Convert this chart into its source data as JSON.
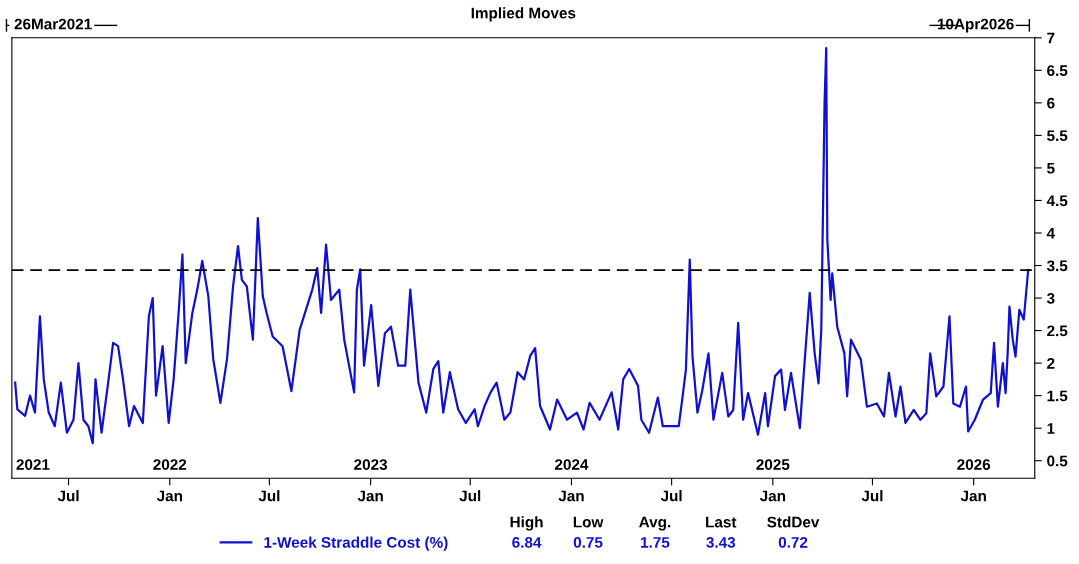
{
  "chart_data": {
    "type": "line",
    "title": "Implied Moves",
    "x": [
      "2021-03-26",
      "2021-03-30",
      "2021-04-13",
      "2021-04-22",
      "2021-05-01",
      "2021-05-10",
      "2021-05-17",
      "2021-05-26",
      "2021-06-06",
      "2021-06-17",
      "2021-06-28",
      "2021-07-10",
      "2021-07-19",
      "2021-07-28",
      "2021-08-06",
      "2021-08-14",
      "2021-08-19",
      "2021-08-30",
      "2021-09-11",
      "2021-09-20",
      "2021-09-29",
      "2021-10-08",
      "2021-10-19",
      "2021-10-28",
      "2021-11-13",
      "2021-11-24",
      "2021-12-01",
      "2021-12-07",
      "2021-12-19",
      "2021-12-30",
      "2022-01-08",
      "2022-01-17",
      "2022-01-24",
      "2022-01-30",
      "2022-02-11",
      "2022-02-20",
      "2022-03-01",
      "2022-03-12",
      "2022-03-21",
      "2022-04-03",
      "2022-04-15",
      "2022-04-26",
      "2022-05-05",
      "2022-05-12",
      "2022-05-21",
      "2022-06-01",
      "2022-06-10",
      "2022-06-19",
      "2022-06-26",
      "2022-07-07",
      "2022-07-25",
      "2022-08-10",
      "2022-08-25",
      "2022-09-17",
      "2022-09-26",
      "2022-10-03",
      "2022-10-12",
      "2022-10-21",
      "2022-11-05",
      "2022-11-14",
      "2022-12-02",
      "2022-12-07",
      "2022-12-13",
      "2022-12-20",
      "2023-01-02",
      "2023-01-15",
      "2023-01-27",
      "2023-02-07",
      "2023-02-20",
      "2023-03-05",
      "2023-03-14",
      "2023-03-29",
      "2023-04-12",
      "2023-04-25",
      "2023-05-04",
      "2023-05-13",
      "2023-05-25",
      "2023-06-09",
      "2023-06-23",
      "2023-07-09",
      "2023-07-15",
      "2023-07-27",
      "2023-08-07",
      "2023-08-18",
      "2023-09-01",
      "2023-09-12",
      "2023-09-25",
      "2023-10-07",
      "2023-10-18",
      "2023-10-27",
      "2023-11-05",
      "2023-11-23",
      "2023-12-06",
      "2023-12-24",
      "2024-01-11",
      "2024-01-23",
      "2024-02-03",
      "2024-02-21",
      "2024-03-14",
      "2024-03-26",
      "2024-04-04",
      "2024-04-15",
      "2024-05-01",
      "2024-05-07",
      "2024-05-21",
      "2024-06-06",
      "2024-06-15",
      "2024-07-03",
      "2024-07-14",
      "2024-07-21",
      "2024-07-27",
      "2024-08-03",
      "2024-08-08",
      "2024-08-17",
      "2024-08-26",
      "2024-09-06",
      "2024-09-15",
      "2024-10-01",
      "2024-10-12",
      "2024-10-21",
      "2024-10-30",
      "2024-11-08",
      "2024-11-17",
      "2024-12-05",
      "2024-12-18",
      "2024-12-23",
      "2025-01-05",
      "2025-01-16",
      "2025-01-23",
      "2025-02-03",
      "2025-02-19",
      "2025-02-28",
      "2025-03-09",
      "2025-03-18",
      "2025-03-25",
      "2025-03-30",
      "2025-04-05",
      "2025-04-08",
      "2025-04-10",
      "2025-04-16",
      "2025-04-19",
      "2025-04-28",
      "2025-05-11",
      "2025-05-16",
      "2025-05-23",
      "2025-06-10",
      "2025-06-21",
      "2025-07-09",
      "2025-07-22",
      "2025-07-31",
      "2025-08-12",
      "2025-08-21",
      "2025-08-30",
      "2025-09-14",
      "2025-09-26",
      "2025-10-07",
      "2025-10-14",
      "2025-10-25",
      "2025-11-07",
      "2025-11-18",
      "2025-11-25",
      "2025-12-07",
      "2025-12-18",
      "2025-12-22",
      "2026-01-03",
      "2026-01-18",
      "2026-02-01",
      "2026-02-07",
      "2026-02-14",
      "2026-02-23",
      "2026-02-28",
      "2026-03-04",
      "2026-03-07",
      "2026-03-13",
      "2026-03-18",
      "2026-03-25",
      "2026-04-02",
      "2026-04-10"
    ],
    "series": [
      {
        "name": "1-Week Straddle Cost (%)",
        "color": "#1010d0",
        "values": [
          1.7,
          1.29,
          1.19,
          1.5,
          1.24,
          2.72,
          1.75,
          1.24,
          1.03,
          1.7,
          0.93,
          1.13,
          2.0,
          1.13,
          1.03,
          0.77,
          1.75,
          0.93,
          1.7,
          2.31,
          2.26,
          1.75,
          1.03,
          1.34,
          1.08,
          2.72,
          3.0,
          1.5,
          2.26,
          1.08,
          1.75,
          2.77,
          3.67,
          2.0,
          2.77,
          3.13,
          3.57,
          3.03,
          2.06,
          1.39,
          2.06,
          3.18,
          3.8,
          3.28,
          3.18,
          2.36,
          4.23,
          3.03,
          2.77,
          2.41,
          2.26,
          1.57,
          2.51,
          3.13,
          3.46,
          2.77,
          3.82,
          2.97,
          3.13,
          2.36,
          1.55,
          3.13,
          3.44,
          1.96,
          2.89,
          1.65,
          2.46,
          2.56,
          1.96,
          1.96,
          3.13,
          1.7,
          1.24,
          1.91,
          2.03,
          1.24,
          1.86,
          1.29,
          1.08,
          1.29,
          1.03,
          1.34,
          1.55,
          1.7,
          1.13,
          1.24,
          1.86,
          1.75,
          2.11,
          2.23,
          1.34,
          0.98,
          1.44,
          1.13,
          1.24,
          0.98,
          1.39,
          1.13,
          1.55,
          0.98,
          1.75,
          1.91,
          1.65,
          1.13,
          0.93,
          1.47,
          1.03,
          1.03,
          1.03,
          1.49,
          1.9,
          3.59,
          2.1,
          1.24,
          1.59,
          2.15,
          1.13,
          1.85,
          1.18,
          1.28,
          2.62,
          1.13,
          1.54,
          0.9,
          1.54,
          1.03,
          1.8,
          1.9,
          1.28,
          1.85,
          1.0,
          2.05,
          3.08,
          2.15,
          1.69,
          2.51,
          6.0,
          6.84,
          3.9,
          2.97,
          3.38,
          2.56,
          2.15,
          1.49,
          2.36,
          2.05,
          1.33,
          1.38,
          1.18,
          1.85,
          1.18,
          1.64,
          1.08,
          1.28,
          1.13,
          1.23,
          2.15,
          1.49,
          1.64,
          2.72,
          1.38,
          1.33,
          1.64,
          0.95,
          1.13,
          1.44,
          1.54,
          2.31,
          1.33,
          2.0,
          1.54,
          2.2,
          2.87,
          2.36,
          2.1,
          2.82,
          2.67,
          3.43
        ]
      }
    ],
    "xlim": [
      "2021-03-20",
      "2026-04-22"
    ],
    "xticks": [
      {
        "value": "2021-07-01",
        "label": "Jul"
      },
      {
        "value": "2022-01-01",
        "label": "Jan"
      },
      {
        "value": "2022-07-01",
        "label": "Jul"
      },
      {
        "value": "2023-01-01",
        "label": "Jan"
      },
      {
        "value": "2023-07-01",
        "label": "Jul"
      },
      {
        "value": "2024-01-01",
        "label": "Jan"
      },
      {
        "value": "2024-07-01",
        "label": "Jul"
      },
      {
        "value": "2025-01-01",
        "label": "Jan"
      },
      {
        "value": "2025-07-01",
        "label": "Jul"
      },
      {
        "value": "2026-01-01",
        "label": "Jan"
      }
    ],
    "ylim": [
      0.23,
      7
    ],
    "yticks": [
      0.5,
      1,
      1.5,
      2,
      2.5,
      3,
      3.5,
      4,
      4.5,
      5,
      5.5,
      6,
      6.5,
      7
    ],
    "ref_lines": [
      {
        "axis": "y",
        "value": 3.43,
        "color": "#000000",
        "line_style": "dashed"
      }
    ],
    "grid": false,
    "legend": "bottom",
    "marker": "none",
    "line_style": "solid",
    "annotations": [
      "26Mar2021",
      "10Apr2026",
      "High",
      "6.84",
      "Low",
      "0.75",
      "Avg.",
      "1.75",
      "Last",
      "3.43",
      "StdDev",
      "0.72",
      "2021",
      "2022",
      "2023",
      "2024",
      "2025",
      "2026"
    ]
  }
}
